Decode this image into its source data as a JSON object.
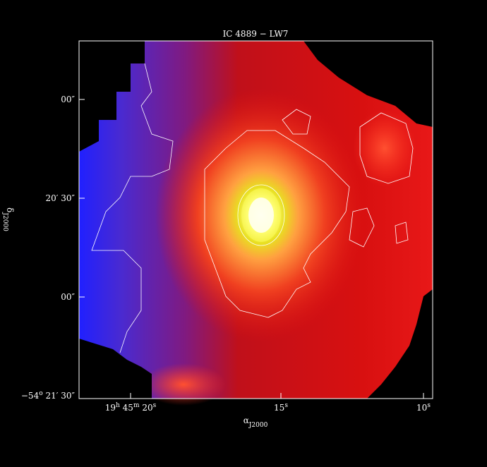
{
  "title": "IC 4889 − LW7",
  "x_axis": {
    "ticks": [
      [
        "19",
        "h",
        " 45",
        "m",
        " 20",
        "s"
      ],
      [
        "15",
        "s"
      ],
      [
        "10",
        "s"
      ]
    ],
    "label": [
      "α",
      "J2000"
    ]
  },
  "y_axis": {
    "ticks": [
      [
        "00″"
      ],
      [
        "20′ 30″"
      ],
      [
        "00″"
      ],
      [
        "−54",
        "o",
        " 21′ 30″"
      ]
    ],
    "label": [
      "δ",
      "J2000"
    ]
  }
}
